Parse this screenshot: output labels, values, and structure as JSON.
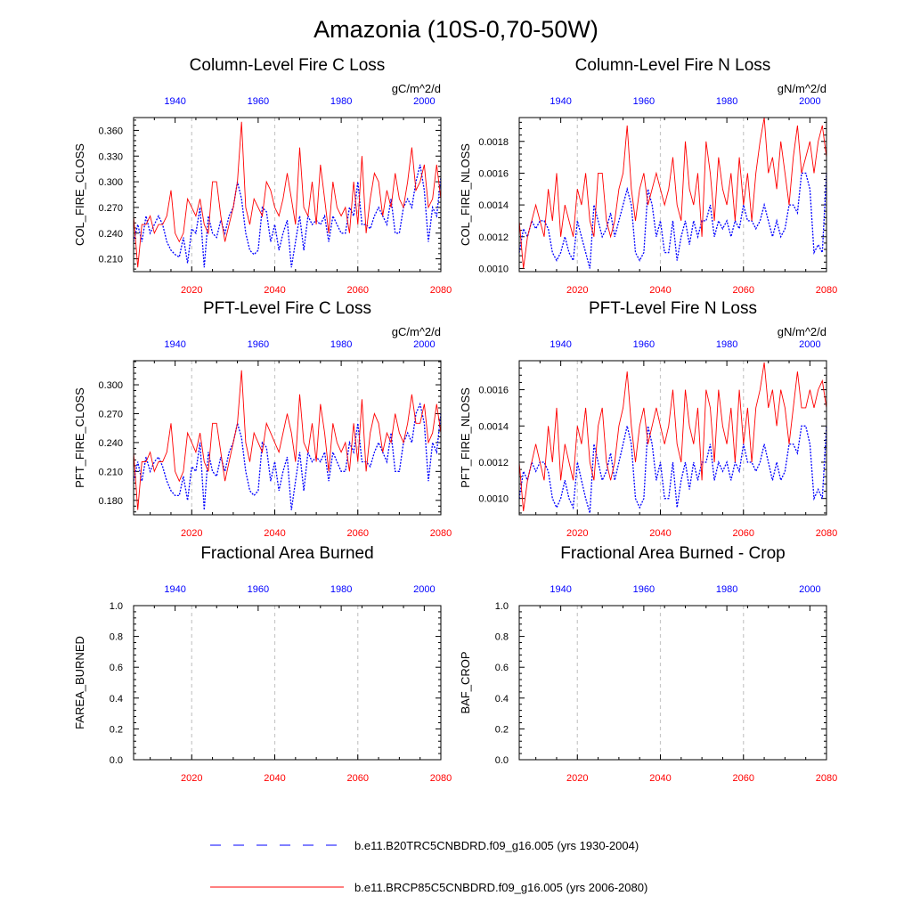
{
  "title": "Amazonia (10S-0,70-50W)",
  "colors": {
    "historical": "#0000ff",
    "future": "#ff0000"
  },
  "legend": {
    "historical": "b.e11.B20TRC5CNBDRD.f09_g16.005 (yrs 1930-2004)",
    "future": "b.e11.BRCP85C5CNBDRD.f09_g16.005 (yrs 2006-2080)"
  },
  "chart_data": [
    {
      "type": "line",
      "title": "Column-Level Fire C Loss",
      "units": "gC/m^2/d",
      "ylabel": "COL_FIRE_CLOSS",
      "ylim": [
        0.195,
        0.375
      ],
      "yticks": [
        0.21,
        0.24,
        0.27,
        0.3,
        0.33,
        0.36
      ],
      "ytick_labels": [
        "0.210",
        "0.240",
        "0.270",
        "0.300",
        "0.330",
        "0.360"
      ],
      "xlim_bottom": [
        2006,
        2080
      ],
      "xticks_bottom": [
        "2020",
        "2040",
        "2060",
        "2080"
      ],
      "xlim_top": [
        1930,
        2004
      ],
      "xticks_top": [
        "1940",
        "1960",
        "1980",
        "2000"
      ],
      "grid": "dashed vertical lines at 2020, 2040, 2060",
      "series": [
        {
          "name": "b.e11.B20TRC5CNBDRD.f09_g16.005 (yrs 1930-2004)",
          "axis": "top",
          "style": "dashed",
          "x_start": 1930,
          "values": [
            0.23,
            0.25,
            0.23,
            0.26,
            0.24,
            0.25,
            0.26,
            0.25,
            0.23,
            0.22,
            0.215,
            0.212,
            0.235,
            0.205,
            0.245,
            0.24,
            0.27,
            0.2,
            0.26,
            0.24,
            0.235,
            0.255,
            0.24,
            0.26,
            0.27,
            0.3,
            0.28,
            0.24,
            0.22,
            0.215,
            0.22,
            0.27,
            0.265,
            0.23,
            0.25,
            0.22,
            0.24,
            0.255,
            0.2,
            0.23,
            0.26,
            0.22,
            0.26,
            0.25,
            0.255,
            0.25,
            0.26,
            0.23,
            0.26,
            0.25,
            0.24,
            0.24,
            0.27,
            0.26,
            0.3,
            0.25,
            0.25,
            0.245,
            0.26,
            0.27,
            0.26,
            0.25,
            0.28,
            0.24,
            0.24,
            0.27,
            0.28,
            0.27,
            0.3,
            0.32,
            0.29,
            0.23,
            0.27,
            0.26,
            0.305
          ]
        },
        {
          "name": "b.e11.BRCP85C5CNBDRD.f09_g16.005 (yrs 2006-2080)",
          "axis": "bottom",
          "style": "solid",
          "x_start": 2006,
          "values": [
            0.26,
            0.2,
            0.25,
            0.25,
            0.26,
            0.24,
            0.25,
            0.25,
            0.26,
            0.29,
            0.24,
            0.23,
            0.24,
            0.28,
            0.27,
            0.26,
            0.28,
            0.25,
            0.24,
            0.3,
            0.3,
            0.26,
            0.23,
            0.25,
            0.27,
            0.3,
            0.37,
            0.27,
            0.25,
            0.28,
            0.27,
            0.26,
            0.3,
            0.29,
            0.27,
            0.26,
            0.28,
            0.31,
            0.28,
            0.25,
            0.34,
            0.27,
            0.26,
            0.3,
            0.25,
            0.32,
            0.28,
            0.24,
            0.3,
            0.27,
            0.26,
            0.27,
            0.24,
            0.3,
            0.25,
            0.33,
            0.24,
            0.28,
            0.31,
            0.3,
            0.26,
            0.29,
            0.27,
            0.31,
            0.28,
            0.27,
            0.3,
            0.34,
            0.29,
            0.3,
            0.32,
            0.27,
            0.28,
            0.32,
            0.28
          ]
        }
      ]
    },
    {
      "type": "line",
      "title": "Column-Level Fire N Loss",
      "units": "gN/m^2/d",
      "ylabel": "COL_FIRE_NLOSS",
      "ylim": [
        0.00098,
        0.00195
      ],
      "yticks": [
        0.001,
        0.0012,
        0.0014,
        0.0016,
        0.0018
      ],
      "ytick_labels": [
        "0.0010",
        "0.0012",
        "0.0014",
        "0.0016",
        "0.0018"
      ],
      "xlim_bottom": [
        2006,
        2080
      ],
      "xticks_bottom": [
        "2020",
        "2040",
        "2060",
        "2080"
      ],
      "xlim_top": [
        1930,
        2004
      ],
      "xticks_top": [
        "1940",
        "1960",
        "1980",
        "2000"
      ],
      "grid": "dashed vertical lines at 2020, 2040, 2060",
      "series": [
        {
          "name": "b.e11.B20TRC5CNBDRD.f09_g16.005 (yrs 1930-2004)",
          "axis": "top",
          "style": "dashed",
          "x_start": 1930,
          "values": [
            0.0011,
            0.00125,
            0.0012,
            0.0013,
            0.00125,
            0.0013,
            0.0013,
            0.00125,
            0.0011,
            0.00105,
            0.0011,
            0.0012,
            0.0011,
            0.00105,
            0.0013,
            0.0012,
            0.0011,
            0.001,
            0.0014,
            0.0013,
            0.0012,
            0.00125,
            0.00135,
            0.0012,
            0.0013,
            0.0014,
            0.0015,
            0.0014,
            0.0011,
            0.00105,
            0.0011,
            0.0015,
            0.0014,
            0.0012,
            0.0013,
            0.0011,
            0.0011,
            0.0013,
            0.00105,
            0.0012,
            0.0013,
            0.00115,
            0.0013,
            0.0012,
            0.0013,
            0.0013,
            0.0014,
            0.0012,
            0.0013,
            0.00125,
            0.0013,
            0.0012,
            0.0013,
            0.00125,
            0.0014,
            0.0013,
            0.0013,
            0.00125,
            0.0013,
            0.0014,
            0.0013,
            0.0012,
            0.0013,
            0.0012,
            0.00125,
            0.0014,
            0.0014,
            0.00135,
            0.0016,
            0.0016,
            0.0015,
            0.0011,
            0.00115,
            0.0011,
            0.0016
          ]
        },
        {
          "name": "b.e11.BRCP85C5CNBDRD.f09_g16.005 (yrs 2006-2080)",
          "axis": "bottom",
          "style": "solid",
          "x_start": 2006,
          "values": [
            0.0013,
            0.001,
            0.0012,
            0.0013,
            0.0014,
            0.0013,
            0.0012,
            0.0015,
            0.0013,
            0.0016,
            0.0012,
            0.0014,
            0.0013,
            0.0012,
            0.0015,
            0.0014,
            0.0016,
            0.0013,
            0.0012,
            0.0016,
            0.0016,
            0.0013,
            0.0012,
            0.0013,
            0.0015,
            0.0016,
            0.0019,
            0.0015,
            0.0013,
            0.0015,
            0.0016,
            0.0014,
            0.0015,
            0.0016,
            0.0015,
            0.0014,
            0.0015,
            0.0017,
            0.0014,
            0.0013,
            0.0018,
            0.0015,
            0.0014,
            0.0016,
            0.0012,
            0.0018,
            0.0016,
            0.0013,
            0.0017,
            0.0015,
            0.0014,
            0.0016,
            0.0013,
            0.0017,
            0.0014,
            0.0016,
            0.0013,
            0.0016,
            0.0018,
            0.00195,
            0.0016,
            0.0017,
            0.0015,
            0.0018,
            0.0016,
            0.0014,
            0.0017,
            0.0019,
            0.0016,
            0.0017,
            0.0018,
            0.0016,
            0.0018,
            0.0019,
            0.0017
          ]
        }
      ]
    },
    {
      "type": "line",
      "title": "PFT-Level Fire C Loss",
      "units": "gC/m^2/d",
      "ylabel": "PFT_FIRE_CLOSS",
      "ylim": [
        0.165,
        0.325
      ],
      "yticks": [
        0.18,
        0.21,
        0.24,
        0.27,
        0.3
      ],
      "ytick_labels": [
        "0.180",
        "0.210",
        "0.240",
        "0.270",
        "0.300"
      ],
      "xlim_bottom": [
        2006,
        2080
      ],
      "xticks_bottom": [
        "2020",
        "2040",
        "2060",
        "2080"
      ],
      "xlim_top": [
        1930,
        2004
      ],
      "xticks_top": [
        "1940",
        "1960",
        "1980",
        "2000"
      ],
      "grid": "dashed vertical lines at 2020, 2040, 2060",
      "series": [
        {
          "name": "b.e11.B20TRC5CNBDRD.f09_g16.005 (yrs 1930-2004)",
          "axis": "top",
          "style": "dashed",
          "x_start": 1930,
          "values": [
            0.2,
            0.22,
            0.2,
            0.225,
            0.21,
            0.22,
            0.225,
            0.215,
            0.2,
            0.19,
            0.185,
            0.185,
            0.205,
            0.18,
            0.215,
            0.21,
            0.24,
            0.17,
            0.23,
            0.21,
            0.205,
            0.225,
            0.21,
            0.23,
            0.24,
            0.26,
            0.245,
            0.21,
            0.19,
            0.185,
            0.19,
            0.24,
            0.235,
            0.2,
            0.22,
            0.19,
            0.21,
            0.225,
            0.17,
            0.2,
            0.23,
            0.19,
            0.23,
            0.22,
            0.225,
            0.22,
            0.23,
            0.2,
            0.23,
            0.22,
            0.21,
            0.21,
            0.24,
            0.23,
            0.26,
            0.22,
            0.22,
            0.215,
            0.23,
            0.24,
            0.23,
            0.22,
            0.25,
            0.21,
            0.21,
            0.24,
            0.25,
            0.24,
            0.27,
            0.28,
            0.26,
            0.2,
            0.24,
            0.23,
            0.27
          ]
        },
        {
          "name": "b.e11.BRCP85C5CNBDRD.f09_g16.005 (yrs 2006-2080)",
          "axis": "bottom",
          "style": "solid",
          "x_start": 2006,
          "values": [
            0.23,
            0.17,
            0.22,
            0.22,
            0.23,
            0.21,
            0.22,
            0.22,
            0.23,
            0.26,
            0.21,
            0.2,
            0.21,
            0.25,
            0.24,
            0.23,
            0.25,
            0.22,
            0.21,
            0.26,
            0.26,
            0.23,
            0.2,
            0.22,
            0.24,
            0.26,
            0.315,
            0.24,
            0.22,
            0.25,
            0.24,
            0.23,
            0.26,
            0.25,
            0.24,
            0.23,
            0.25,
            0.27,
            0.25,
            0.22,
            0.29,
            0.24,
            0.23,
            0.26,
            0.22,
            0.28,
            0.25,
            0.21,
            0.26,
            0.24,
            0.23,
            0.24,
            0.21,
            0.26,
            0.22,
            0.285,
            0.21,
            0.25,
            0.27,
            0.26,
            0.23,
            0.25,
            0.24,
            0.27,
            0.25,
            0.24,
            0.26,
            0.29,
            0.26,
            0.26,
            0.28,
            0.24,
            0.25,
            0.28,
            0.25
          ]
        }
      ]
    },
    {
      "type": "line",
      "title": "PFT-Level Fire N Loss",
      "units": "gN/m^2/d",
      "ylabel": "PFT_FIRE_NLOSS",
      "ylim": [
        0.00091,
        0.00176
      ],
      "yticks": [
        0.001,
        0.0012,
        0.0014,
        0.0016
      ],
      "ytick_labels": [
        "0.0010",
        "0.0012",
        "0.0014",
        "0.0016"
      ],
      "xlim_bottom": [
        2006,
        2080
      ],
      "xticks_bottom": [
        "2020",
        "2040",
        "2060",
        "2080"
      ],
      "xlim_top": [
        1930,
        2004
      ],
      "xticks_top": [
        "1940",
        "1960",
        "1980",
        "2000"
      ],
      "grid": "dashed vertical lines at 2020, 2040, 2060",
      "series": [
        {
          "name": "b.e11.B20TRC5CNBDRD.f09_g16.005 (yrs 1930-2004)",
          "axis": "top",
          "style": "dashed",
          "x_start": 1930,
          "values": [
            0.001,
            0.00115,
            0.0011,
            0.0012,
            0.00115,
            0.0012,
            0.0012,
            0.00115,
            0.001,
            0.00095,
            0.001,
            0.0011,
            0.001,
            0.00095,
            0.0012,
            0.0011,
            0.001,
            0.00092,
            0.0013,
            0.0012,
            0.0011,
            0.00115,
            0.00125,
            0.0011,
            0.0012,
            0.0013,
            0.0014,
            0.0013,
            0.001,
            0.00095,
            0.001,
            0.0014,
            0.0013,
            0.0011,
            0.0012,
            0.001,
            0.001,
            0.0012,
            0.00095,
            0.0011,
            0.0012,
            0.00105,
            0.0012,
            0.0011,
            0.0012,
            0.0012,
            0.0013,
            0.0011,
            0.0012,
            0.00115,
            0.0012,
            0.0011,
            0.0012,
            0.00115,
            0.0013,
            0.0012,
            0.0012,
            0.00115,
            0.0012,
            0.0013,
            0.0012,
            0.0011,
            0.0012,
            0.0011,
            0.00115,
            0.0013,
            0.0013,
            0.00125,
            0.0014,
            0.0014,
            0.0013,
            0.001,
            0.00105,
            0.001,
            0.0014
          ]
        },
        {
          "name": "b.e11.BRCP85C5CNBDRD.f09_g16.005 (yrs 2006-2080)",
          "axis": "bottom",
          "style": "solid",
          "x_start": 2006,
          "values": [
            0.0012,
            0.00093,
            0.0011,
            0.0012,
            0.0013,
            0.0012,
            0.0011,
            0.0014,
            0.0012,
            0.0015,
            0.0011,
            0.0013,
            0.0012,
            0.0011,
            0.0014,
            0.0013,
            0.0015,
            0.0012,
            0.0011,
            0.0014,
            0.0015,
            0.0012,
            0.0011,
            0.0012,
            0.0014,
            0.0015,
            0.0017,
            0.0014,
            0.0012,
            0.0014,
            0.0015,
            0.0013,
            0.0014,
            0.0015,
            0.0014,
            0.0013,
            0.0014,
            0.0016,
            0.0013,
            0.0012,
            0.0016,
            0.0014,
            0.0013,
            0.0015,
            0.0011,
            0.0016,
            0.0015,
            0.0012,
            0.0016,
            0.0014,
            0.0013,
            0.0015,
            0.0012,
            0.0016,
            0.0013,
            0.0015,
            0.0012,
            0.0015,
            0.0016,
            0.00175,
            0.0015,
            0.0016,
            0.0014,
            0.0016,
            0.0015,
            0.0013,
            0.0015,
            0.0017,
            0.0015,
            0.0015,
            0.0016,
            0.0015,
            0.0016,
            0.00165,
            0.0015
          ]
        }
      ]
    },
    {
      "type": "line",
      "title": "Fractional Area Burned",
      "units": "",
      "ylabel": "FAREA_BURNED",
      "ylim": [
        0,
        1
      ],
      "yticks": [
        0,
        0.2,
        0.4,
        0.6,
        0.8,
        1
      ],
      "ytick_labels": [
        "0.0",
        "0.2",
        "0.4",
        "0.6",
        "0.8",
        "1.0"
      ],
      "xlim_bottom": [
        2006,
        2080
      ],
      "xticks_bottom": [
        "2020",
        "2040",
        "2060",
        "2080"
      ],
      "xlim_top": [
        1930,
        2004
      ],
      "xticks_top": [
        "1940",
        "1960",
        "1980",
        "2000"
      ],
      "grid": "dashed vertical lines at 2020, 2040, 2060",
      "series": []
    },
    {
      "type": "line",
      "title": "Fractional Area Burned - Crop",
      "units": "",
      "ylabel": "BAF_CROP",
      "ylim": [
        0,
        1
      ],
      "yticks": [
        0,
        0.2,
        0.4,
        0.6,
        0.8,
        1
      ],
      "ytick_labels": [
        "0.0",
        "0.2",
        "0.4",
        "0.6",
        "0.8",
        "1.0"
      ],
      "xlim_bottom": [
        2006,
        2080
      ],
      "xticks_bottom": [
        "2020",
        "2040",
        "2060",
        "2080"
      ],
      "xlim_top": [
        1930,
        2004
      ],
      "xticks_top": [
        "1940",
        "1960",
        "1980",
        "2000"
      ],
      "grid": "dashed vertical lines at 2020, 2040, 2060",
      "series": []
    }
  ]
}
